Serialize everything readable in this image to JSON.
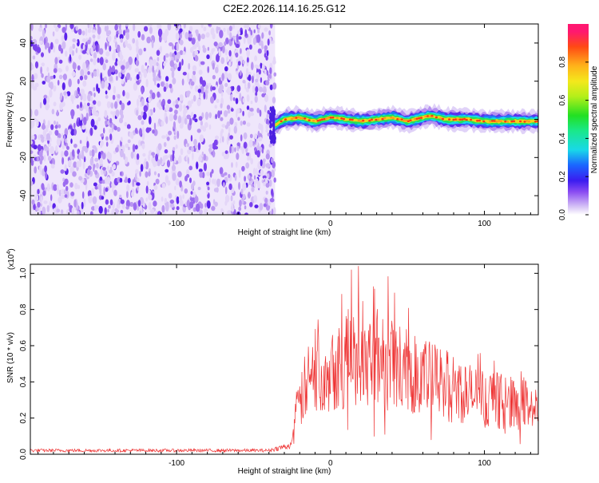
{
  "figure_title": "C2E2.2026.114.16.25.G12",
  "chart_data": [
    {
      "type": "heatmap",
      "xlabel": "Height of straight line (km)",
      "ylabel": "Frequency (Hz)",
      "xlim": [
        -195,
        135
      ],
      "ylim": [
        -50,
        50
      ],
      "xticks": [
        -100,
        0,
        100
      ],
      "yticks": [
        -40,
        -20,
        0,
        20,
        40
      ],
      "noise_region_x": [
        -195,
        -36
      ],
      "signal_band": {
        "x_start": -36,
        "center_freq": [
          {
            "x": -36,
            "y": -3
          },
          {
            "x": -30,
            "y": 0
          },
          {
            "x": -20,
            "y": 1
          },
          {
            "x": -10,
            "y": -1
          },
          {
            "x": 0,
            "y": 1
          },
          {
            "x": 10,
            "y": 0
          },
          {
            "x": 20,
            "y": -1
          },
          {
            "x": 30,
            "y": 0
          },
          {
            "x": 40,
            "y": 1
          },
          {
            "x": 50,
            "y": -1
          },
          {
            "x": 60,
            "y": 1
          },
          {
            "x": 65,
            "y": 2
          },
          {
            "x": 75,
            "y": 0
          },
          {
            "x": 90,
            "y": 0
          },
          {
            "x": 100,
            "y": -1
          },
          {
            "x": 110,
            "y": -1
          },
          {
            "x": 135,
            "y": -1
          }
        ]
      },
      "colorbar": {
        "label": "Normalized spectral amplitude",
        "range": [
          0,
          1
        ],
        "ticks": [
          0.0,
          0.2,
          0.4,
          0.6,
          0.8
        ],
        "tick_labels": [
          "0.0",
          "0.2",
          "0.4",
          "0.6",
          "0.8"
        ]
      },
      "grid": false
    },
    {
      "type": "line",
      "xlabel": "Height of straight line (km)",
      "ylabel": "SNR (10 * v/v)",
      "y_multiplier_label": "(x10",
      "y_multiplier_exp": "4",
      "y_multiplier_close": ")",
      "xlim": [
        -195,
        135
      ],
      "ylim": [
        0,
        1.05
      ],
      "xticks": [
        -100,
        0,
        100
      ],
      "yticks": [
        0.0,
        0.2,
        0.4,
        0.6,
        0.8,
        1.0
      ],
      "ytick_labels": [
        "0.0",
        "0.2",
        "0.4",
        "0.6",
        "0.8",
        "1.0"
      ],
      "series_color": "#ee3333",
      "envelope": [
        {
          "x": -195,
          "y": 0.02
        },
        {
          "x": -40,
          "y": 0.02
        },
        {
          "x": -25,
          "y": 0.05
        },
        {
          "x": -22,
          "y": 0.25
        },
        {
          "x": -15,
          "y": 0.42
        },
        {
          "x": 0,
          "y": 0.52
        },
        {
          "x": 20,
          "y": 0.58
        },
        {
          "x": 30,
          "y": 0.57
        },
        {
          "x": 50,
          "y": 0.48
        },
        {
          "x": 70,
          "y": 0.42
        },
        {
          "x": 90,
          "y": 0.35
        },
        {
          "x": 110,
          "y": 0.31
        },
        {
          "x": 135,
          "y": 0.28
        }
      ],
      "grid": false
    }
  ]
}
